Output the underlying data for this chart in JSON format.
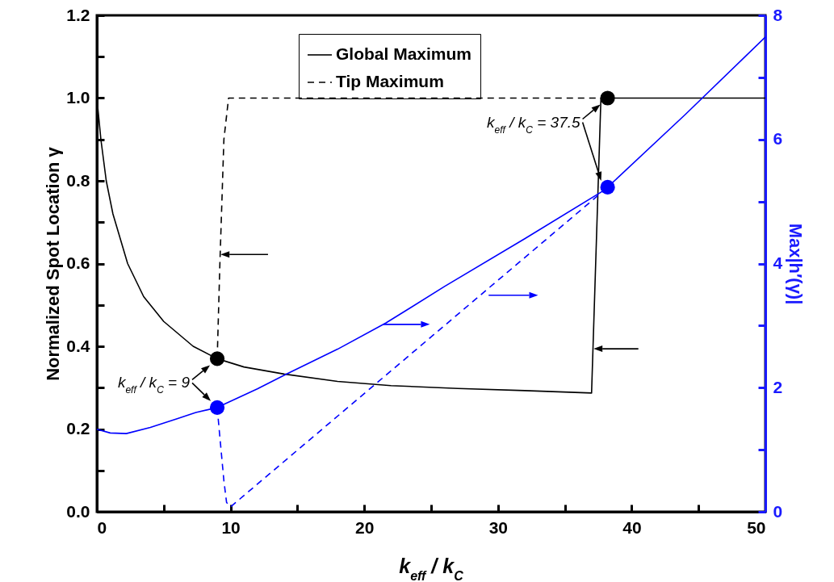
{
  "chart_data": {
    "type": "line",
    "xlabel": "k$_{eff}$ / k$_{C}$",
    "ylabel": "Normalized Spot Location γ",
    "y2label": "Max|h′(γ)|",
    "xlim": [
      0,
      50
    ],
    "xticks": [
      0,
      {
        "value": 5,
        "label": null
      },
      10,
      {
        "value": 15,
        "label": null
      },
      20,
      {
        "value": 25,
        "label": null
      },
      30,
      {
        "value": 35,
        "label": null
      },
      40,
      {
        "value": 45,
        "label": null
      },
      50
    ],
    "ylim": [
      0,
      1.2
    ],
    "yticks": [
      {
        "value": 0,
        "label": "0.0"
      },
      {
        "value": 0.1,
        "label": null
      },
      0.2,
      {
        "value": 0.3,
        "label": null
      },
      0.4,
      {
        "value": 0.5,
        "label": null
      },
      0.6,
      {
        "value": 0.7,
        "label": null
      },
      0.8,
      {
        "value": 0.9,
        "label": null
      },
      {
        "value": 1,
        "label": "1.0"
      },
      {
        "value": 1.1,
        "label": null
      },
      1.2
    ],
    "y2lim": [
      0,
      8
    ],
    "y2ticks": [
      0,
      {
        "value": 1,
        "label": null
      },
      2,
      {
        "value": 3,
        "label": null
      },
      4,
      {
        "value": 5,
        "label": null
      },
      6,
      {
        "value": 7,
        "label": null
      },
      8
    ],
    "grid": false,
    "legend": "top",
    "series": [
      {
        "name": "Global Maximum",
        "line_style": "solid",
        "color": "#000000",
        "x": [
          0,
          0.3,
          0.7,
          1.2,
          2.3,
          3.5,
          5,
          7.2,
          9,
          11,
          14,
          18,
          22,
          27,
          32,
          37,
          37.7,
          50
        ],
        "values": [
          1.0,
          0.9,
          0.8,
          0.72,
          0.6,
          0.52,
          0.46,
          0.4,
          0.37,
          0.35,
          0.333,
          0.315,
          0.305,
          0.298,
          0.293,
          0.287,
          1.0,
          1.0
        ]
      },
      {
        "name": "Tip Maximum",
        "line_style": "dashed",
        "color": "#000000",
        "x": [
          9,
          9.2,
          9.5,
          9.85,
          37.7
        ],
        "values": [
          0.37,
          0.6,
          0.9,
          1.0,
          1.0
        ]
      },
      {
        "axis": "y2",
        "line_style": "solid",
        "color": "#0000ff",
        "x": [
          0,
          1,
          2.2,
          4,
          6,
          7.4,
          9,
          12,
          14.2,
          18,
          21.6,
          26,
          32,
          37.7,
          38.2,
          44,
          50
        ],
        "values": [
          1.33,
          1.27,
          1.26,
          1.36,
          1.5,
          1.6,
          1.68,
          1.98,
          2.22,
          2.62,
          3.04,
          3.63,
          4.4,
          5.15,
          5.23,
          6.4,
          7.65
        ]
      },
      {
        "axis": "y2",
        "line_style": "dashed",
        "color": "#0000ff",
        "x": [
          9,
          9.2,
          9.5,
          9.7,
          10,
          37.5
        ],
        "values": [
          1.68,
          1.2,
          0.5,
          0.15,
          0.08,
          5.1
        ]
      },
      {
        "type": "scatter",
        "marker": "circle",
        "color": "#000000",
        "x": [
          9,
          38.2
        ],
        "values": [
          0.37,
          1.0
        ]
      },
      {
        "type": "scatter",
        "axis": "y2",
        "marker": "circle",
        "color": "#0000ff",
        "x": [
          9,
          38.2
        ],
        "values": [
          1.68,
          5.23
        ]
      }
    ],
    "annotations": [
      {
        "text": "k$_{eff}$ / k$_{C}$ = 9",
        "x": 9,
        "y": 0.37
      },
      {
        "text": "k$_{eff}$ / k$_{C}$ = 37.5",
        "x": 38.2,
        "y": 1.0
      }
    ]
  }
}
